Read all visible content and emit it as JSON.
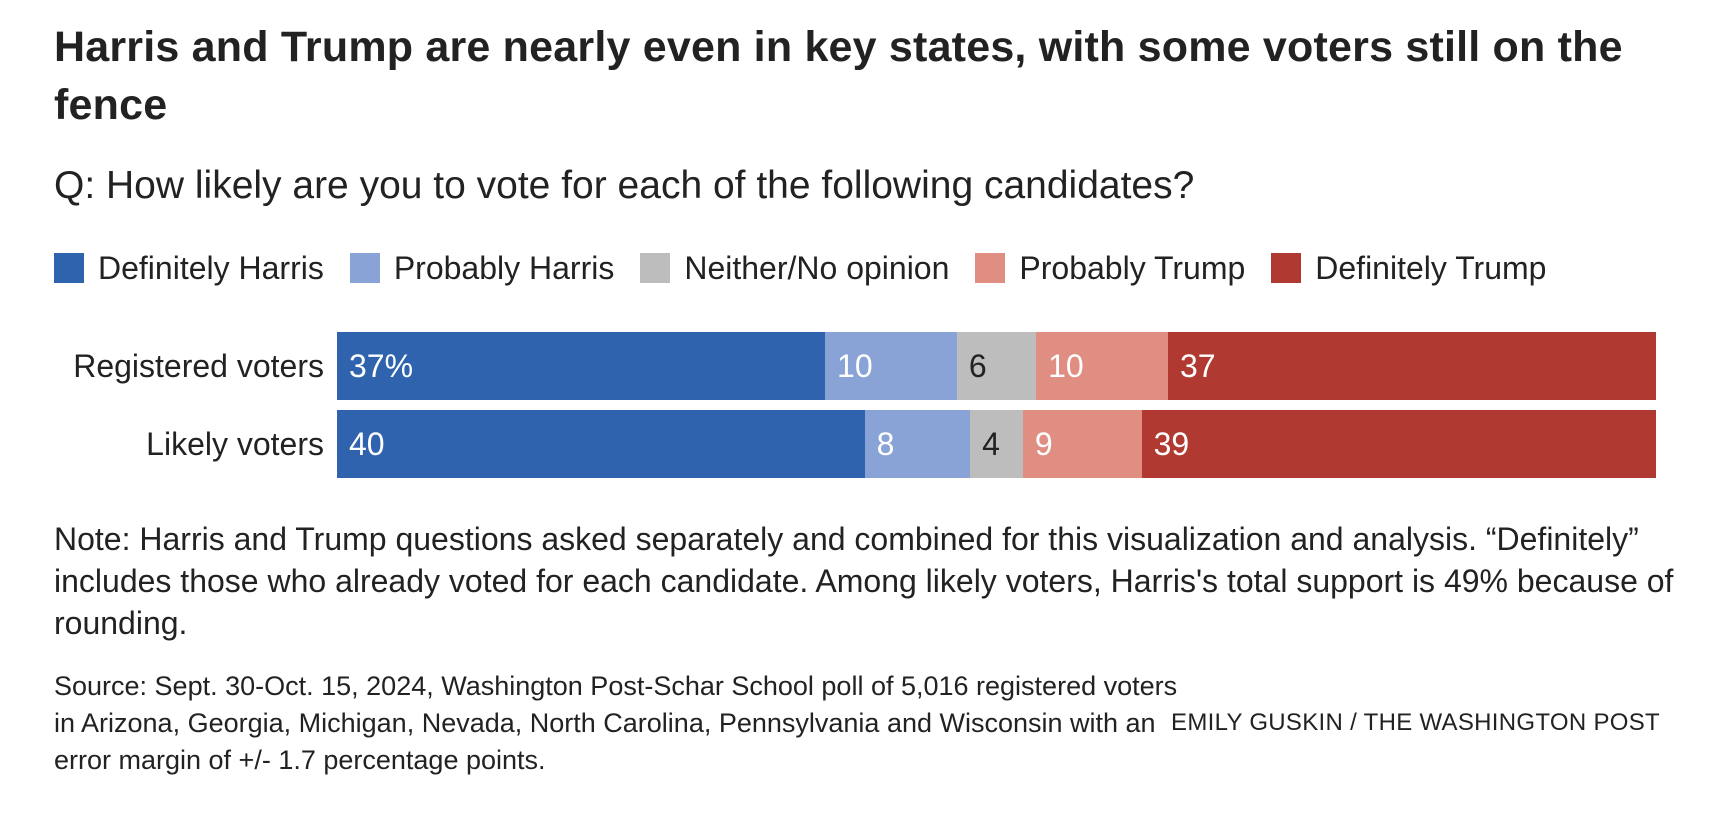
{
  "title": "Harris and Trump are nearly even in key states, with some voters still on the fence",
  "subtitle": "Q: How likely are you to vote for each of the following candidates?",
  "colors": {
    "definitely_harris": "#2f63ae",
    "probably_harris": "#8aa3d6",
    "neither": "#bdbdbd",
    "probably_trump": "#e08d82",
    "definitely_trump": "#b03a31"
  },
  "note": "Note: Harris and Trump questions asked separately and combined for this visualization and analysis. “Definitely” includes those who already voted for each candidate. Among likely voters, Harris's total support is 49% because of rounding.",
  "source": "Source: Sept. 30-Oct. 15, 2024, Washington Post-Schar School poll of 5,016 registered voters in Arizona, Georgia, Michigan, Nevada, North Carolina, Pennsylvania and Wisconsin with an error margin of +/- 1.7 percentage points.",
  "credit": "EMILY GUSKIN / THE WASHINGTON POST",
  "chart_data": {
    "type": "bar",
    "orientation": "horizontal",
    "stacked": true,
    "title": "Harris and Trump are nearly even in key states, with some voters still on the fence",
    "subtitle": "Q: How likely are you to vote for each of the following candidates?",
    "categories": [
      "Registered voters",
      "Likely voters"
    ],
    "legend_position": "top",
    "series": [
      {
        "name": "Definitely Harris",
        "color": "#2f63ae",
        "text_color": "#ffffff",
        "values": [
          37,
          40
        ],
        "labels": [
          "37%",
          "40"
        ]
      },
      {
        "name": "Probably Harris",
        "color": "#8aa3d6",
        "text_color": "#ffffff",
        "values": [
          10,
          8
        ],
        "labels": [
          "10",
          "8"
        ]
      },
      {
        "name": "Neither/No opinion",
        "color": "#bdbdbd",
        "text_color": "#222222",
        "values": [
          6,
          4
        ],
        "labels": [
          "6",
          "4"
        ]
      },
      {
        "name": "Probably Trump",
        "color": "#e08d82",
        "text_color": "#ffffff",
        "values": [
          10,
          9
        ],
        "labels": [
          "10",
          "9"
        ]
      },
      {
        "name": "Definitely Trump",
        "color": "#b03a31",
        "text_color": "#ffffff",
        "values": [
          37,
          39
        ],
        "labels": [
          "37",
          "39"
        ]
      }
    ]
  }
}
